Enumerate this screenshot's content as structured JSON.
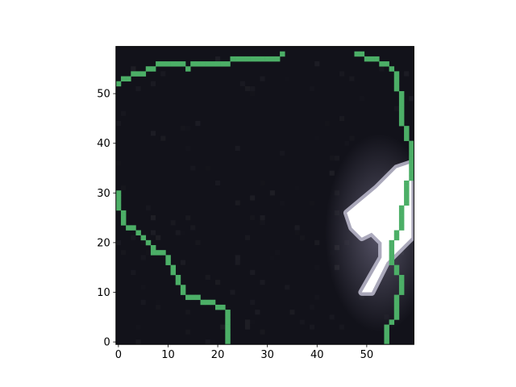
{
  "chart_data": {
    "type": "heatmap",
    "title": "",
    "xlabel": "",
    "ylabel": "",
    "xlim": [
      -0.5,
      59.5
    ],
    "ylim": [
      59.5,
      -0.5
    ],
    "x_ticks": [
      0,
      10,
      20,
      30,
      40,
      50
    ],
    "y_ticks": [
      0,
      10,
      20,
      30,
      40,
      50
    ],
    "x_tick_labels": [
      "0",
      "10",
      "20",
      "30",
      "40",
      "50"
    ],
    "y_tick_labels": [
      "0",
      "10",
      "20",
      "30",
      "40",
      "50"
    ],
    "grid": false,
    "image_size": [
      60,
      60
    ],
    "colormap": "bone",
    "background_color": "#12121a",
    "highlight_color": "#ffffff",
    "contour_color": "#4caf67",
    "bright_region": [
      [
        49,
        10
      ],
      [
        51,
        10
      ],
      [
        54,
        16
      ],
      [
        57,
        19
      ],
      [
        59,
        21
      ],
      [
        59,
        36
      ],
      [
        56,
        35
      ],
      [
        52,
        31
      ],
      [
        46,
        26
      ],
      [
        47,
        23
      ],
      [
        49,
        21
      ],
      [
        51,
        22
      ],
      [
        53,
        20
      ],
      [
        53,
        17
      ]
    ],
    "contour_left": [
      [
        22,
        0
      ],
      [
        22,
        7
      ],
      [
        21,
        8
      ],
      [
        18,
        9
      ],
      [
        17,
        9
      ],
      [
        16,
        10
      ],
      [
        14,
        10
      ],
      [
        13,
        11
      ],
      [
        12,
        14
      ],
      [
        11,
        15
      ],
      [
        10,
        17
      ],
      [
        9,
        19
      ],
      [
        7,
        19
      ],
      [
        6,
        21
      ],
      [
        5,
        22
      ],
      [
        4,
        23
      ],
      [
        2,
        24
      ],
      [
        1,
        25
      ],
      [
        1,
        27
      ],
      [
        0,
        28
      ],
      [
        0,
        31
      ]
    ],
    "contour_right": [
      [
        54,
        0
      ],
      [
        54,
        4
      ],
      [
        55,
        5
      ],
      [
        56,
        7
      ],
      [
        56,
        10
      ],
      [
        57,
        11
      ],
      [
        57,
        14
      ],
      [
        56,
        15
      ],
      [
        55,
        17
      ],
      [
        55,
        21
      ],
      [
        56,
        23
      ],
      [
        57,
        25
      ],
      [
        57,
        28
      ],
      [
        58,
        29
      ],
      [
        58,
        33
      ],
      [
        59,
        35
      ],
      [
        59,
        41
      ],
      [
        58,
        42
      ],
      [
        58,
        44
      ],
      [
        57,
        45
      ],
      [
        57,
        51
      ],
      [
        56,
        52
      ],
      [
        56,
        55
      ],
      [
        55,
        56
      ],
      [
        54,
        57
      ],
      [
        53,
        57
      ],
      [
        52,
        58
      ],
      [
        50,
        58
      ],
      [
        49,
        59
      ],
      [
        48,
        59
      ]
    ],
    "contour_bottom": [
      [
        0,
        53
      ],
      [
        1,
        54
      ],
      [
        2,
        54
      ],
      [
        3,
        55
      ],
      [
        5,
        55
      ],
      [
        7,
        56
      ],
      [
        9,
        57
      ],
      [
        13,
        57
      ],
      [
        14,
        56
      ],
      [
        15,
        57
      ],
      [
        22,
        57
      ],
      [
        23,
        58
      ],
      [
        25,
        58
      ],
      [
        32,
        58
      ],
      [
        33,
        59
      ]
    ]
  }
}
